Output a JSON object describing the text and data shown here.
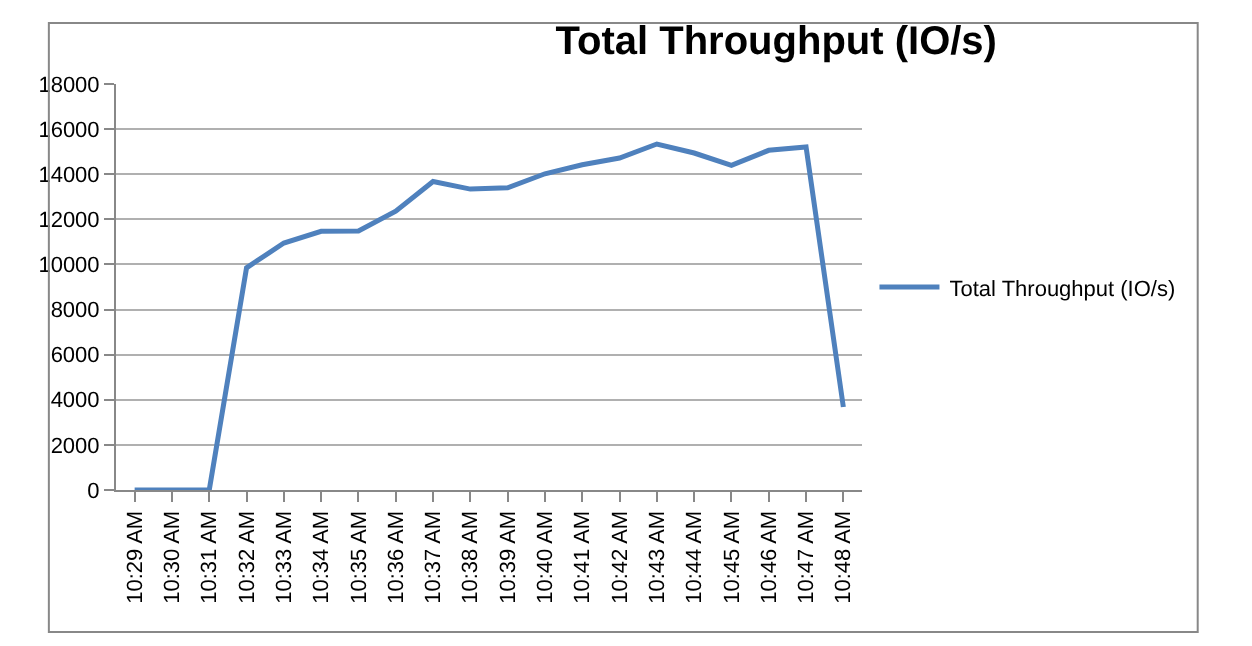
{
  "chart_data": {
    "type": "line",
    "title": "Total Throughput (IO/s)",
    "categories": [
      "10:29 AM",
      "10:30 AM",
      "10:31 AM",
      "10:32 AM",
      "10:33 AM",
      "10:34 AM",
      "10:35 AM",
      "10:36 AM",
      "10:37 AM",
      "10:38 AM",
      "10:39 AM",
      "10:40 AM",
      "10:41 AM",
      "10:42 AM",
      "10:43 AM",
      "10:44 AM",
      "10:45 AM",
      "10:46 AM",
      "10:47 AM",
      "10:48 AM"
    ],
    "series": [
      {
        "name": "Total Throughput (IO/s)",
        "color": "#4f81bd",
        "values": [
          0,
          0,
          0,
          9850,
          10950,
          11470,
          11480,
          12360,
          13680,
          13340,
          13400,
          14020,
          14420,
          14720,
          15340,
          14940,
          14390,
          15060,
          15210,
          3680
        ]
      }
    ],
    "ylim": [
      0,
      18000
    ],
    "yticks": [
      0,
      2000,
      4000,
      6000,
      8000,
      10000,
      12000,
      14000,
      16000,
      18000
    ],
    "grid": "y",
    "legend": "right",
    "marker": "none",
    "line_style": "solid"
  }
}
